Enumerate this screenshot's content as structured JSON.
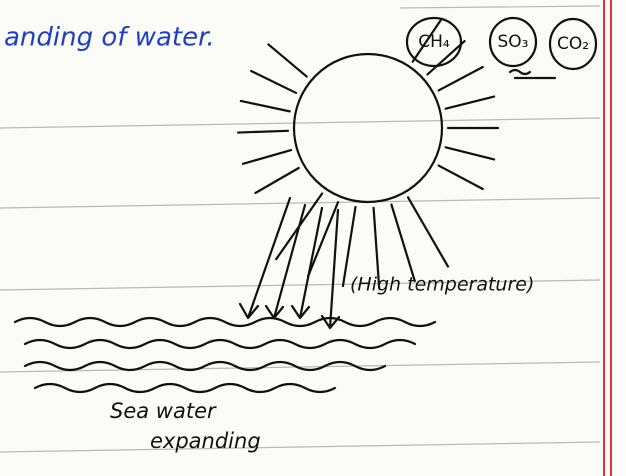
{
  "header": {
    "title": "anding of water."
  },
  "gases": [
    "CH₄",
    "SO₃",
    "CO₂"
  ],
  "labels": {
    "heat": "(High temperature)",
    "sea_line1": "Sea water",
    "sea_line2": "expanding"
  }
}
